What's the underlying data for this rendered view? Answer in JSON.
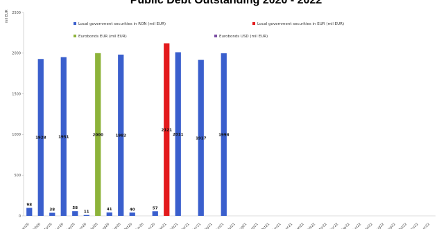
{
  "chart_data": {
    "type": "bar",
    "title": "Public Debt Outstanding 2020 - 2022",
    "ylabel": "mil EUR",
    "xlabel": "",
    "ylim": [
      0,
      2500
    ],
    "yticks": [
      0,
      500,
      1000,
      1500,
      2000,
      2500
    ],
    "grid": false,
    "legend_position": "top",
    "categories": [
      "Jan20",
      "Feb20",
      "Mar20",
      "Apr20",
      "May20",
      "Jun20",
      "Jul20",
      "Aug20",
      "Sep20",
      "Oct20",
      "Nov20",
      "Dec20",
      "Jan21",
      "Feb21",
      "Mar21",
      "Apr21",
      "May21",
      "Jun21",
      "Jul21",
      "Aug21",
      "Sep21",
      "Oct21",
      "Nov21",
      "Dec21",
      "Jan22",
      "Feb22",
      "Mar22",
      "Apr22",
      "May22",
      "Jun22",
      "Jul22",
      "Aug22",
      "Sep22",
      "Oct22",
      "Nov22",
      "Dec22"
    ],
    "series": [
      {
        "name": "Local government securities in RON (mil EUR)",
        "color": "#3a5fcd",
        "values": [
          98,
          1928,
          38,
          1951,
          58,
          11,
          0,
          41,
          1982,
          40,
          0,
          57,
          0,
          2011,
          0,
          1917,
          0,
          1998,
          0,
          0,
          0,
          0,
          0,
          0,
          0,
          0,
          0,
          0,
          0,
          0,
          0,
          0,
          0,
          0,
          0,
          0
        ]
      },
      {
        "name": "Local government securities in EUR (mil EUR)",
        "color": "#e31a1c",
        "values": [
          0,
          0,
          0,
          0,
          0,
          0,
          0,
          0,
          0,
          0,
          0,
          0,
          2121,
          0,
          0,
          0,
          0,
          0,
          0,
          0,
          0,
          0,
          0,
          0,
          0,
          0,
          0,
          0,
          0,
          0,
          0,
          0,
          0,
          0,
          0,
          0
        ]
      },
      {
        "name": "Eurobonds EUR (mil EUR)",
        "color": "#8db33a",
        "values": [
          0,
          0,
          0,
          0,
          0,
          0,
          2000,
          0,
          0,
          0,
          0,
          0,
          0,
          0,
          0,
          0,
          0,
          0,
          0,
          0,
          0,
          0,
          0,
          0,
          0,
          0,
          0,
          0,
          0,
          0,
          0,
          0,
          0,
          0,
          0,
          0
        ]
      },
      {
        "name": "Eurobonds USD (mil EUR)",
        "color": "#7b4ea3",
        "values": [
          0,
          0,
          0,
          0,
          0,
          0,
          0,
          0,
          0,
          0,
          0,
          0,
          0,
          0,
          0,
          0,
          0,
          0,
          0,
          0,
          0,
          0,
          0,
          0,
          0,
          0,
          0,
          0,
          0,
          0,
          0,
          0,
          0,
          0,
          0,
          0
        ]
      }
    ],
    "data_labels": [
      {
        "category": "Jan20",
        "text": "98"
      },
      {
        "category": "Feb20",
        "text": "1928"
      },
      {
        "category": "Mar20",
        "text": "38"
      },
      {
        "category": "Apr20",
        "text": "1951"
      },
      {
        "category": "May20",
        "text": "58"
      },
      {
        "category": "Jun20",
        "text": "11"
      },
      {
        "category": "Jul20",
        "text": "2000"
      },
      {
        "category": "Aug20",
        "text": "41"
      },
      {
        "category": "Sep20",
        "text": "1982"
      },
      {
        "category": "Oct20",
        "text": "40"
      },
      {
        "category": "Dec20",
        "text": "57"
      },
      {
        "category": "Jan21",
        "text": "2121"
      },
      {
        "category": "Feb21",
        "text": "2011"
      },
      {
        "category": "Apr21",
        "text": "1917"
      },
      {
        "category": "Jun21",
        "text": "1998"
      }
    ]
  }
}
